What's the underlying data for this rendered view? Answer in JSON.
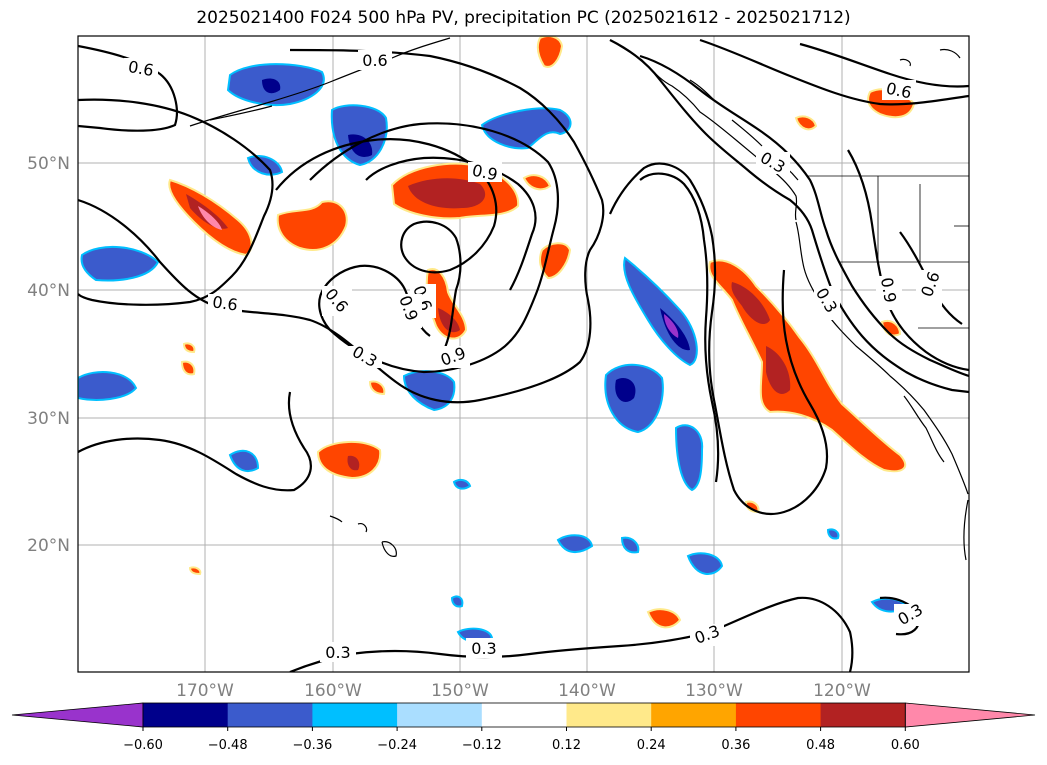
{
  "title": "2025021400 F024 500 hPa PV, precipitation PC (2025021612 - 2025021712)",
  "map": {
    "projection": "plate-carree",
    "lon_range": [
      -180,
      -110
    ],
    "lat_range": [
      10,
      60
    ],
    "gridlines": true,
    "lat_labels": [
      "50°N",
      "40°N",
      "30°N",
      "20°N"
    ],
    "lon_labels": [
      "170°W",
      "160°W",
      "150°W",
      "140°W",
      "130°W",
      "120°W"
    ],
    "contour_labels": [
      "0.6",
      "0.6",
      "0.9",
      "0.6",
      "0.3",
      "0.6",
      "0.9",
      "0.6",
      "0.3",
      "0.9",
      "0.6",
      "0.6",
      "0.3",
      "0.3",
      "0.3",
      "0.3",
      "0.3",
      "0.3",
      "0.9"
    ]
  },
  "colorbar": {
    "ticks": [
      "−0.60",
      "−0.48",
      "−0.36",
      "−0.24",
      "−0.12",
      "0.12",
      "0.24",
      "0.36",
      "0.48",
      "0.60"
    ],
    "colors": [
      "#9933cc",
      "#00008b",
      "#3b5bcc",
      "#00bfff",
      "#aadeff",
      "#ffffff",
      "#ffe98a",
      "#ffa500",
      "#ff4500",
      "#b22222",
      "#ff88aa"
    ]
  }
}
